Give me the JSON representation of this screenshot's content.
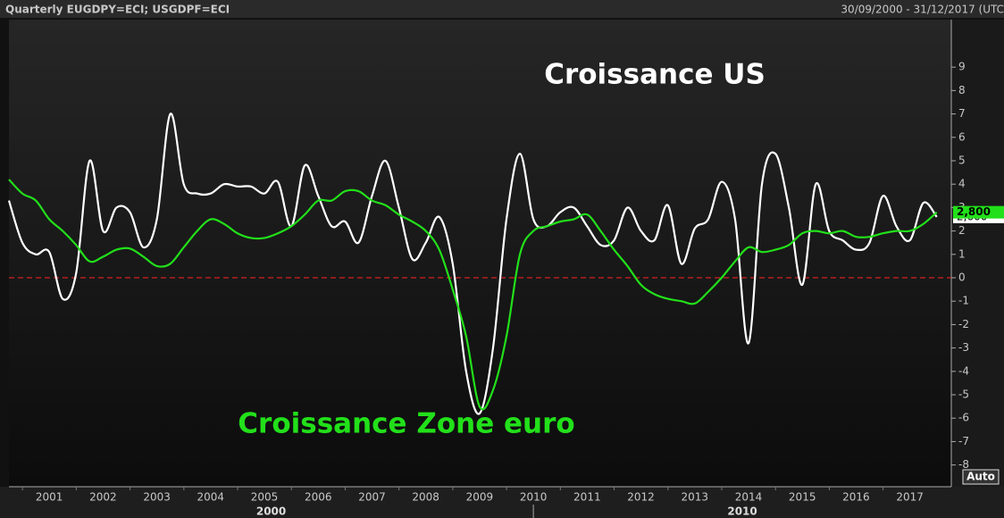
{
  "header": {
    "title": "Quarterly EUGDPY=ECI; USGDPF=ECI",
    "range": "30/09/2000 - 31/12/2017 (UTC",
    "button": "Auto"
  },
  "chart_data": {
    "type": "line",
    "annotations": [
      {
        "text": "Croissance US",
        "color": "#ffffff"
      },
      {
        "text": "Croissance Zone euro",
        "color": "#22e01a"
      }
    ],
    "x": [
      2000.25,
      2000.5,
      2000.75,
      2001,
      2001.25,
      2001.5,
      2001.75,
      2002,
      2002.25,
      2002.5,
      2002.75,
      2003,
      2003.25,
      2003.5,
      2003.75,
      2004,
      2004.25,
      2004.5,
      2004.75,
      2005,
      2005.25,
      2005.5,
      2005.75,
      2006,
      2006.25,
      2006.5,
      2006.75,
      2007,
      2007.25,
      2007.5,
      2007.75,
      2008,
      2008.25,
      2008.5,
      2008.75,
      2009,
      2009.25,
      2009.5,
      2009.75,
      2010,
      2010.25,
      2010.5,
      2010.75,
      2011,
      2011.25,
      2011.5,
      2011.75,
      2012,
      2012.25,
      2012.5,
      2012.75,
      2013,
      2013.25,
      2013.5,
      2013.75,
      2014,
      2014.25,
      2014.5,
      2014.75,
      2015,
      2015.25,
      2015.5,
      2015.75,
      2016,
      2016.25,
      2016.5,
      2016.75,
      2017,
      2017.25,
      2017.5
    ],
    "series": [
      {
        "name": "USGDPF=ECI",
        "color": "#ffffff",
        "last_value_label": "2,600",
        "values": [
          3.3,
          1.5,
          1.0,
          1.1,
          -0.9,
          0.2,
          5.0,
          2.0,
          3.0,
          2.8,
          1.3,
          2.5,
          7.0,
          4.0,
          3.6,
          3.6,
          4.0,
          3.9,
          3.9,
          3.6,
          4.1,
          2.2,
          4.8,
          3.5,
          2.2,
          2.4,
          1.5,
          3.5,
          5.0,
          3.0,
          0.8,
          1.5,
          2.6,
          0.6,
          -4.0,
          -5.8,
          -3.0,
          2.5,
          5.3,
          2.5,
          2.2,
          2.8,
          3.0,
          2.2,
          1.4,
          1.6,
          3.0,
          2.0,
          1.6,
          3.1,
          0.6,
          2.1,
          2.5,
          4.1,
          2.5,
          -2.8,
          4.0,
          5.3,
          3.0,
          -0.3,
          4.0,
          2.0,
          1.6,
          1.2,
          1.5,
          3.5,
          2.2,
          1.6,
          3.2,
          2.6
        ]
      },
      {
        "name": "EUGDPY=ECI",
        "color": "#22e01a",
        "last_value_label": "2,800",
        "values": [
          4.2,
          3.6,
          3.3,
          2.5,
          2.0,
          1.4,
          0.7,
          0.9,
          1.2,
          1.25,
          0.9,
          0.5,
          0.6,
          1.3,
          2.0,
          2.5,
          2.3,
          1.9,
          1.7,
          1.7,
          1.9,
          2.2,
          2.7,
          3.3,
          3.3,
          3.7,
          3.7,
          3.3,
          3.1,
          2.7,
          2.4,
          2.0,
          1.2,
          -0.5,
          -2.5,
          -5.5,
          -4.8,
          -2.5,
          1.0,
          2.0,
          2.2,
          2.4,
          2.5,
          2.7,
          2.0,
          1.2,
          0.5,
          -0.3,
          -0.7,
          -0.9,
          -1.0,
          -1.1,
          -0.6,
          0.0,
          0.7,
          1.3,
          1.1,
          1.2,
          1.4,
          1.9,
          2.0,
          1.9,
          2.0,
          1.75,
          1.75,
          1.9,
          2.0,
          2.0,
          2.3,
          2.8
        ]
      }
    ],
    "xlim": [
      2000.25,
      2017.77
    ],
    "xticks": [
      2001,
      2002,
      2003,
      2004,
      2005,
      2006,
      2007,
      2008,
      2009,
      2010,
      2011,
      2012,
      2013,
      2014,
      2015,
      2016,
      2017
    ],
    "decade_labels": [
      2000,
      2010
    ],
    "ylim": [
      -8.93,
      11.03
    ],
    "yticks": [
      -8,
      -7,
      -6,
      -5,
      -4,
      -3,
      -2,
      -1,
      0,
      1,
      2,
      3,
      4,
      5,
      6,
      7,
      8,
      9
    ],
    "reference_line": {
      "value": 0,
      "color": "#d42020"
    }
  }
}
